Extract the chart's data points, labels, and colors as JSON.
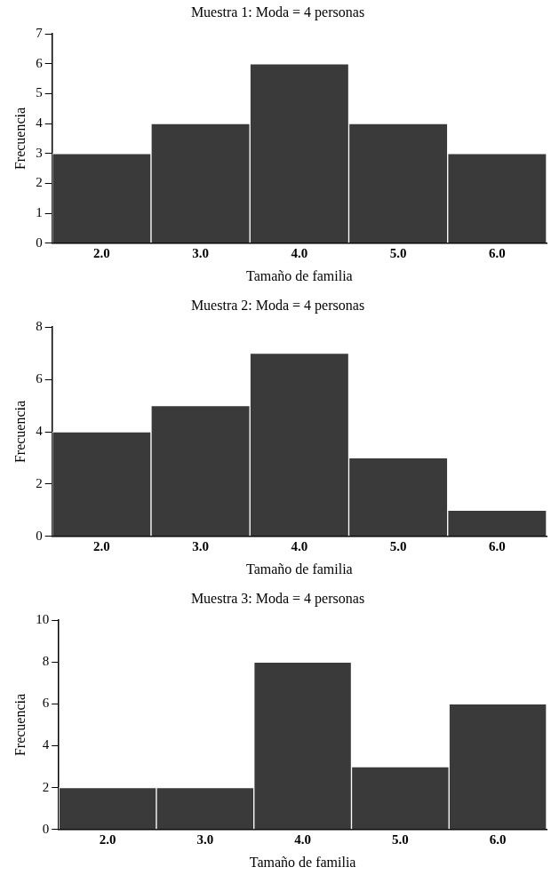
{
  "chart_data": [
    {
      "type": "histogram",
      "title": "Muestra 1: Moda = 4 personas",
      "xlabel": "Tamaño de familia",
      "ylabel": "Frecuencia",
      "bins": [
        1.5,
        2.5,
        3.5,
        4.5,
        5.5,
        6.5
      ],
      "values": [
        3,
        4,
        6,
        4,
        3
      ],
      "color": "#3a3a3a",
      "xlim": [
        1.5,
        6.5
      ],
      "xticks": [
        {
          "value": 2,
          "label": "2.0"
        },
        {
          "value": 3,
          "label": "3.0"
        },
        {
          "value": 4,
          "label": "4.0"
        },
        {
          "value": 5,
          "label": "5.0"
        },
        {
          "value": 6,
          "label": "6.0"
        }
      ],
      "ylim": [
        0,
        7
      ],
      "yticks": [
        0,
        1,
        2,
        3,
        4,
        5,
        6,
        7
      ],
      "grid": false,
      "legend": false
    },
    {
      "type": "histogram",
      "title": "Muestra 2: Moda = 4 personas",
      "xlabel": "Tamaño de familia",
      "ylabel": "Frecuencia",
      "bins": [
        1.5,
        2.5,
        3.5,
        4.5,
        5.5,
        6.5
      ],
      "values": [
        4,
        5,
        7,
        3,
        1
      ],
      "color": "#3a3a3a",
      "xlim": [
        1.5,
        6.5
      ],
      "xticks": [
        {
          "value": 2,
          "label": "2.0"
        },
        {
          "value": 3,
          "label": "3.0"
        },
        {
          "value": 4,
          "label": "4.0"
        },
        {
          "value": 5,
          "label": "5.0"
        },
        {
          "value": 6,
          "label": "6.0"
        }
      ],
      "ylim": [
        0,
        8
      ],
      "yticks": [
        0,
        2,
        4,
        6,
        8
      ],
      "grid": false,
      "legend": false
    },
    {
      "type": "histogram",
      "title": "Muestra 3: Moda = 4 personas",
      "xlabel": "Tamaño de familia",
      "ylabel": "Frecuencia",
      "bins": [
        1.5,
        2.5,
        3.5,
        4.5,
        5.5,
        6.5
      ],
      "values": [
        2,
        2,
        8,
        3,
        6
      ],
      "color": "#3a3a3a",
      "xlim": [
        1.5,
        6.5
      ],
      "xticks": [
        {
          "value": 2,
          "label": "2.0"
        },
        {
          "value": 3,
          "label": "3.0"
        },
        {
          "value": 4,
          "label": "4.0"
        },
        {
          "value": 5,
          "label": "5.0"
        },
        {
          "value": 6,
          "label": "6.0"
        }
      ],
      "ylim": [
        0,
        10
      ],
      "yticks": [
        0,
        2,
        4,
        6,
        8,
        10
      ],
      "grid": false,
      "legend": false
    }
  ]
}
